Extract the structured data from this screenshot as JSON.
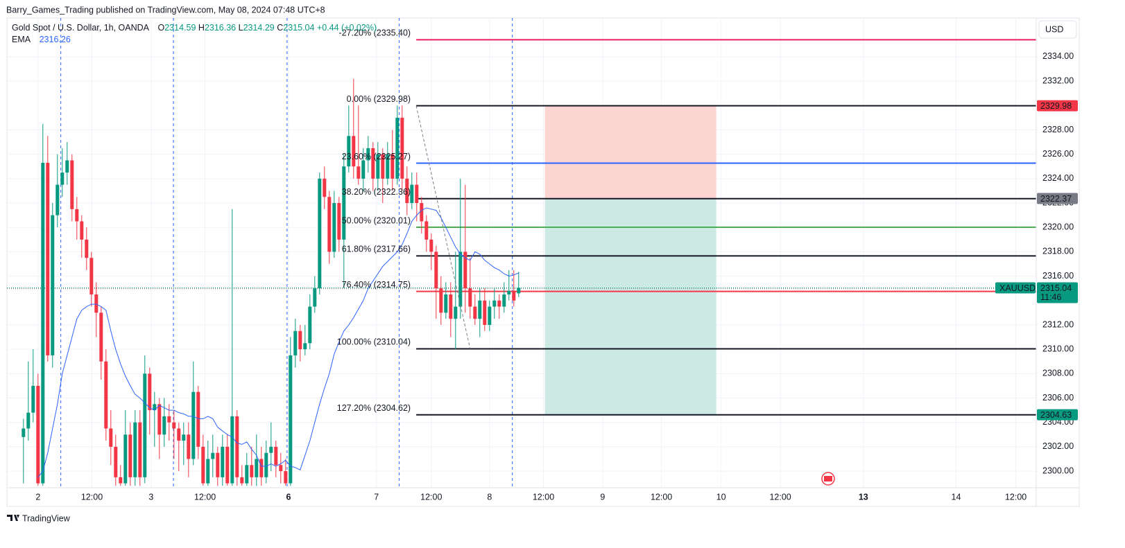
{
  "header": {
    "text": "Barry_Games_Trading published on TradingView.com, May 08, 2024 07:48 UTC+8"
  },
  "footer": {
    "text": "TradingView"
  },
  "chart_data": {
    "type": "candlestick",
    "symbol": "Gold Spot / U.S. Dollar, 1h, OANDA",
    "legend": {
      "o_label": "O",
      "o": 2314.59,
      "h_label": "H",
      "h": 2316.36,
      "l_label": "L",
      "l": 2314.29,
      "c_label": "C",
      "c": 2315.04,
      "change": "+0.44 (+0.02%)"
    },
    "currency": "USD",
    "up_color": "#089981",
    "down_color": "#f23645",
    "grid": true,
    "xlim": [
      -6.4,
      205.6
    ],
    "xticks": [
      {
        "value": 0,
        "label": "2"
      },
      {
        "value": 11.1,
        "label": "12:00"
      },
      {
        "value": 23.3,
        "label": "3"
      },
      {
        "value": 34.4,
        "label": "12:00"
      },
      {
        "value": 51.6,
        "label": "6"
      },
      {
        "value": 69.7,
        "label": "7"
      },
      {
        "value": 81,
        "label": "12:00"
      },
      {
        "value": 93,
        "label": "8"
      },
      {
        "value": 104.1,
        "label": "12:00"
      },
      {
        "value": 116.3,
        "label": "9"
      },
      {
        "value": 128.4,
        "label": "12:00"
      },
      {
        "value": 140.7,
        "label": "10"
      },
      {
        "value": 152.9,
        "label": "12:00"
      },
      {
        "value": 170,
        "label": "13"
      },
      {
        "value": 189.1,
        "label": "14"
      },
      {
        "value": 201.4,
        "label": "12:00"
      }
    ],
    "ylim": [
      2298.64,
      2337.18
    ],
    "yticks": [
      {
        "value": 2300,
        "label": "2300.00"
      },
      {
        "value": 2302,
        "label": "2302.00"
      },
      {
        "value": 2304,
        "label": "2304.00"
      },
      {
        "value": 2306,
        "label": "2306.00"
      },
      {
        "value": 2308,
        "label": "2308.00"
      },
      {
        "value": 2310,
        "label": "2310.00"
      },
      {
        "value": 2312,
        "label": "2312.00"
      },
      {
        "value": 2316,
        "label": "2316.00"
      },
      {
        "value": 2318,
        "label": "2318.00"
      },
      {
        "value": 2320,
        "label": "2320.00"
      },
      {
        "value": 2322,
        "label": "2322.00"
      },
      {
        "value": 2324,
        "label": "2324.00"
      },
      {
        "value": 2326,
        "label": "2326.00"
      },
      {
        "value": 2328,
        "label": "2328.00"
      },
      {
        "value": 2332,
        "label": "2332.00"
      },
      {
        "value": 2334,
        "label": "2334.00"
      }
    ],
    "x": [
      -3,
      -2,
      -1,
      0,
      1,
      2,
      3,
      4,
      5,
      6,
      7,
      8,
      9,
      10,
      11,
      12,
      13,
      14,
      15,
      16,
      17,
      18,
      19,
      20,
      21,
      22,
      23,
      24,
      25,
      26,
      27,
      28,
      29,
      30,
      31,
      32,
      33,
      34,
      35,
      36,
      37,
      38,
      39,
      40,
      41,
      42,
      43,
      44,
      45,
      46,
      47,
      48,
      49,
      50,
      51,
      52,
      53,
      54,
      55,
      56,
      57,
      58,
      59,
      60,
      61,
      62,
      63,
      64,
      65,
      66,
      67,
      68,
      69,
      70,
      71,
      72,
      73,
      74,
      75,
      76,
      77,
      78,
      79,
      80,
      81,
      82,
      83,
      84,
      85,
      86,
      87,
      88,
      89,
      90,
      91,
      92,
      93,
      94,
      95,
      96,
      97,
      98,
      99
    ],
    "open": [
      2302.8,
      2303.5,
      2304.8,
      2307,
      2299,
      2325.3,
      2309.5,
      2321,
      2323.5,
      2324.5,
      2325.5,
      2321.5,
      2320.5,
      2319,
      2317.5,
      2314.5,
      2313,
      2309,
      2303.5,
      2302,
      2299.5,
      2299,
      2303,
      2299.5,
      2304,
      2299.5,
      2308,
      2305,
      2305.5,
      2303,
      2304.5,
      2304,
      2303.5,
      2302.5,
      2303,
      2301,
      2306.5,
      2302,
      2299,
      2301,
      2301.5,
      2299.5,
      2302,
      2299,
      2304.5,
      2299.5,
      2299,
      2300.5,
      2299.5,
      2301,
      2299.5,
      2301.5,
      2302,
      2300.5,
      2300,
      2299,
      2309.5,
      2311.5,
      2310,
      2310.5,
      2313.5,
      2315,
      2324,
      2322.5,
      2318,
      2322,
      2319,
      2325,
      2327.5,
      2325,
      2324,
      2325.5,
      2326.5,
      2324,
      2326,
      2324,
      2326,
      2324,
      2329,
      2324,
      2322,
      2323.5,
      2322,
      2320.5,
      2319,
      2318,
      2315,
      2313,
      2314.5,
      2312.5,
      2313.5,
      2318,
      2315,
      2313.5,
      2312.5,
      2314,
      2312,
      2313.5,
      2314,
      2313.5,
      2314.5,
      2314.8,
      2314.59
    ],
    "high": [
      2304.3,
      2309,
      2310,
      2308,
      2328.5,
      2327.5,
      2322,
      2326,
      2326.5,
      2327,
      2326,
      2322.5,
      2321,
      2320,
      2318,
      2315.5,
      2313.5,
      2310,
      2305,
      2303,
      2300.5,
      2305,
      2304,
      2305,
      2305,
      2309.5,
      2308.5,
      2306.5,
      2306,
      2306,
      2305.5,
      2305,
      2304,
      2304,
      2304,
      2309,
      2307,
      2303,
      2302.5,
      2303,
      2302,
      2303,
      2303,
      2321.5,
      2305,
      2300.5,
      2301.5,
      2302,
      2303,
      2302,
      2302.5,
      2304,
      2302.5,
      2301.5,
      2301,
      2311,
      2312.5,
      2312,
      2312,
      2314.5,
      2316,
      2324.5,
      2325,
      2323,
      2323,
      2322.5,
      2326,
      2330,
      2332.2,
      2330,
      2326.5,
      2327.5,
      2327,
      2327,
      2326.5,
      2327,
      2328,
      2330,
      2330,
      2325,
      2324.5,
      2324.5,
      2322.5,
      2321,
      2319.5,
      2318.5,
      2316,
      2315.5,
      2315.5,
      2318,
      2324,
      2323.5,
      2317.5,
      2314.5,
      2315,
      2315,
      2314,
      2315,
      2314.5,
      2315.5,
      2316.5,
      2316.5,
      2316.36
    ],
    "low": [
      2299,
      2302.5,
      2304,
      2298.8,
      2298.8,
      2309,
      2308.5,
      2320,
      2322.5,
      2323.5,
      2320.5,
      2319,
      2317.5,
      2316.5,
      2313.5,
      2311,
      2307.5,
      2302.5,
      2300.5,
      2298.8,
      2298.8,
      2298.8,
      2298.8,
      2298.8,
      2298.8,
      2299,
      2303,
      2302,
      2301,
      2302,
      2302.5,
      2301,
      2300,
      2300.5,
      2299.5,
      2300.5,
      2301,
      2298.8,
      2298.8,
      2299.5,
      2298.8,
      2298.8,
      2298.8,
      2298.8,
      2298.8,
      2298.8,
      2298.8,
      2298.8,
      2298.8,
      2298.8,
      2299,
      2300,
      2299.5,
      2299,
      2298.8,
      2298.8,
      2308.5,
      2309,
      2309.5,
      2310,
      2313,
      2314.5,
      2321.5,
      2317,
      2317.5,
      2318,
      2315,
      2324.5,
      2324,
      2323.5,
      2323,
      2324.5,
      2323,
      2323,
      2322,
      2323.5,
      2323,
      2323.5,
      2323,
      2321,
      2321.5,
      2320.5,
      2319.5,
      2318,
      2316.5,
      2312.5,
      2312,
      2312.5,
      2311,
      2310,
      2312.5,
      2313,
      2312.5,
      2312,
      2311,
      2311.5,
      2311.5,
      2312.5,
      2312.5,
      2313,
      2314,
      2313.5,
      2314.29
    ],
    "close": [
      2303.5,
      2304.8,
      2307,
      2299,
      2325.3,
      2309.5,
      2321,
      2323.5,
      2324.5,
      2325.5,
      2321.5,
      2320.5,
      2319,
      2317.5,
      2314.5,
      2313,
      2309,
      2303.5,
      2302,
      2299.5,
      2299,
      2303,
      2299.5,
      2304,
      2299.5,
      2308,
      2305,
      2305.5,
      2303,
      2304.5,
      2304,
      2303.5,
      2302.5,
      2303,
      2301,
      2306.5,
      2302,
      2299,
      2301,
      2301.5,
      2299.5,
      2302,
      2299,
      2304.5,
      2299.5,
      2299,
      2300.5,
      2299.5,
      2301,
      2299.5,
      2301.5,
      2302,
      2300.5,
      2300,
      2299,
      2309.5,
      2311.5,
      2310,
      2310.5,
      2313.5,
      2315,
      2324,
      2322.5,
      2318,
      2322,
      2319,
      2325,
      2327.5,
      2325,
      2324,
      2325.5,
      2326.5,
      2324,
      2326,
      2324,
      2326,
      2324,
      2329,
      2324,
      2322,
      2323.5,
      2322,
      2320.5,
      2319,
      2318,
      2315,
      2313,
      2314.5,
      2312.5,
      2313.5,
      2318,
      2315,
      2313.5,
      2312.5,
      2314,
      2312,
      2313.5,
      2314,
      2313.5,
      2314.5,
      2314.8,
      2314,
      2315.04
    ],
    "indicator": {
      "name": "EMA",
      "value": 2316.26,
      "color": "#2962ff",
      "values": [
        null,
        null,
        null,
        2299.5,
        2300,
        2301.5,
        2303.5,
        2305.5,
        2308,
        2309.5,
        2311,
        2312.5,
        2313.2,
        2313.5,
        2313.7,
        2313.7,
        2313.5,
        2313.2,
        2311.5,
        2310,
        2308.8,
        2307.8,
        2307,
        2306.3,
        2306,
        2305.6,
        2305.2,
        2305,
        2305.4,
        2305.2,
        2305,
        2305,
        2304.8,
        2304.7,
        2304.5,
        2304.5,
        2304.3,
        2304.3,
        2304.5,
        2304.3,
        2303.6,
        2303.3,
        2303,
        2302.8,
        2302.3,
        2302.2,
        2302.4,
        2301.8,
        2301.3,
        2300.4,
        2300.4,
        2300.6,
        2300.4,
        2300.6,
        2300.9,
        2300.4,
        2300.3,
        2300.1,
        2301.3,
        2302.5,
        2304,
        2305.5,
        2306.8,
        2308,
        2309.6,
        2310.6,
        2311.5,
        2312,
        2312.6,
        2313.3,
        2314,
        2315,
        2315.6,
        2316.2,
        2316.8,
        2317.2,
        2317.6,
        2318,
        2318.6,
        2319.5,
        2320.5,
        2321,
        2321.4,
        2321.6,
        2321.5,
        2321.4,
        2320.8,
        2320,
        2319.2,
        2318.4,
        2317.8,
        2317.5,
        2317.3,
        2318,
        2317.8,
        2317.3,
        2317,
        2316.7,
        2316.5,
        2316.2,
        2316,
        2316.1,
        2316.26
      ]
    },
    "session_breaks": [
      4.7,
      27.9,
      51.3,
      74.4,
      97.7
    ],
    "fib": {
      "x_start": 77.9,
      "anchor_x": [
        77.9,
        89
      ],
      "anchor_y": [
        2329.98,
        2310.04
      ],
      "levels": [
        {
          "label": "-27.20% (2335.40)",
          "value": 2335.4,
          "color": "#e91e63"
        },
        {
          "label": "0.00% (2329.98)",
          "value": 2329.98,
          "color": "#131722"
        },
        {
          "label": "23.60% (2325.27)",
          "value": 2325.27,
          "color": "#2962ff"
        },
        {
          "label": "38.20% (2322.36)",
          "value": 2322.36,
          "color": "#131722"
        },
        {
          "label": "50.00% (2320.01)",
          "value": 2320.01,
          "color": "#4caf50"
        },
        {
          "label": "61.80% (2317.66)",
          "value": 2317.66,
          "color": "#131722"
        },
        {
          "label": "76.40% (2314.75)",
          "value": 2314.75,
          "color": "#f23645"
        },
        {
          "label": "100.00% (2310.04)",
          "value": 2310.04,
          "color": "#131722"
        },
        {
          "label": "127.20% (2304.62)",
          "value": 2304.62,
          "color": "#131722"
        }
      ]
    },
    "position": {
      "x": [
        104.4,
        139.7
      ],
      "stop": 2329.98,
      "entry": 2322.37,
      "target": 2304.63,
      "stop_color": "#fcd5d3",
      "target_color": "#cce9e4"
    },
    "price_badges": [
      {
        "value": 2329.98,
        "color": "#f23645"
      },
      {
        "value": 2322.37,
        "color": "#787b86"
      },
      {
        "value": 2304.63,
        "color": "#089981"
      }
    ],
    "last_price": {
      "value": 2315.04,
      "countdown": "11:46",
      "symbol": "XAUUSD",
      "color": "#089981"
    }
  }
}
